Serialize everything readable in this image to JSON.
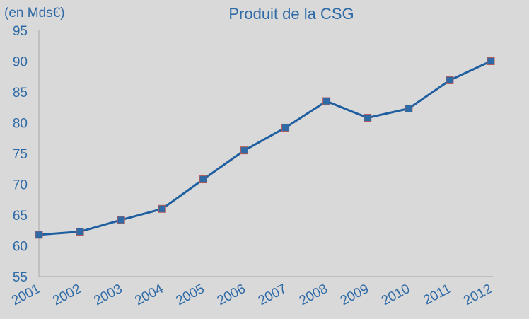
{
  "chart_data": {
    "type": "line",
    "title": "Produit de la CSG",
    "unit_label": "(en Mds€)",
    "xlabel": "",
    "ylabel": "",
    "categories": [
      "2001",
      "2002",
      "2003",
      "2004",
      "2005",
      "2006",
      "2007",
      "2008",
      "2009",
      "2010",
      "2011",
      "2012"
    ],
    "series": [
      {
        "values": [
          61.8,
          62.3,
          64.2,
          66.0,
          70.8,
          75.5,
          79.2,
          83.5,
          80.8,
          82.3,
          86.9,
          90.0
        ]
      }
    ],
    "ylim": [
      55,
      95
    ],
    "yticks": [
      55,
      60,
      65,
      70,
      75,
      80,
      85,
      90,
      95
    ],
    "grid": false,
    "line_color": "#1f5fa0",
    "marker_color": "#2e6aa6"
  }
}
